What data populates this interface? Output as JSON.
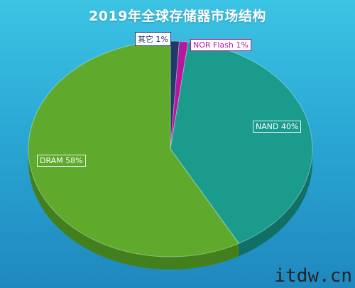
{
  "chart_data": {
    "type": "pie",
    "title": "2019年全球存储器市场结构",
    "slices": [
      {
        "label": "其它",
        "value": 1,
        "display": "其它 1%",
        "color": "#1f3a6b",
        "side": "#15284a"
      },
      {
        "label": "NOR Flash",
        "value": 1,
        "display": "NOR Flash 1%",
        "color": "#b5179e",
        "side": "#7d0f6d"
      },
      {
        "label": "NAND",
        "value": 40,
        "display": "NAND 40%",
        "color": "#1a9b8c",
        "side": "#117066"
      },
      {
        "label": "DRAM",
        "value": 58,
        "display": "DRAM 58%",
        "color": "#5faa2c",
        "side": "#43801d"
      }
    ],
    "legend": "none"
  },
  "watermark": "itdw.cn"
}
